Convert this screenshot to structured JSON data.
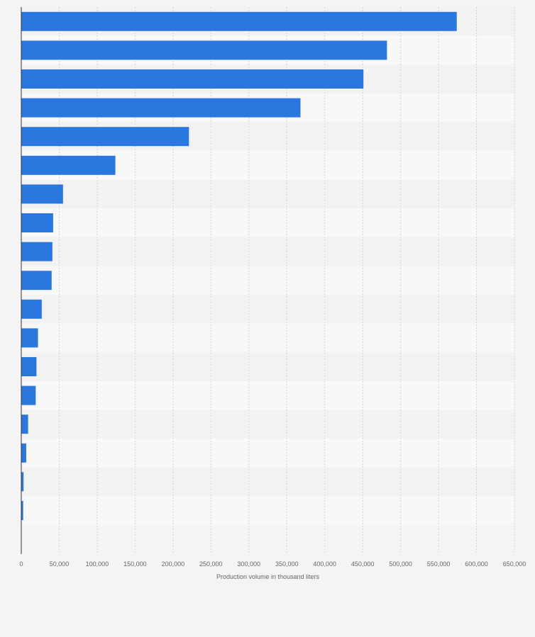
{
  "chart_data": {
    "type": "bar",
    "orientation": "horizontal",
    "values": [
      574000,
      482000,
      451000,
      368000,
      221000,
      124000,
      55000,
      42000,
      41000,
      40000,
      27000,
      22000,
      20000,
      19000,
      9000,
      6500,
      3000,
      2500
    ],
    "xlabel": "Production volume in thousand liters",
    "xlim": [
      0,
      650000
    ],
    "xticks": [
      0,
      50000,
      100000,
      150000,
      200000,
      250000,
      300000,
      350000,
      400000,
      450000,
      500000,
      550000,
      600000,
      650000
    ],
    "xtick_labels": [
      "0",
      "50,000",
      "100,000",
      "150,000",
      "200,000",
      "250,000",
      "300,000",
      "350,000",
      "400,000",
      "450,000",
      "500,000",
      "550,000",
      "600,000",
      "650,000"
    ],
    "grid": true,
    "bar_color": "#2a77df"
  }
}
